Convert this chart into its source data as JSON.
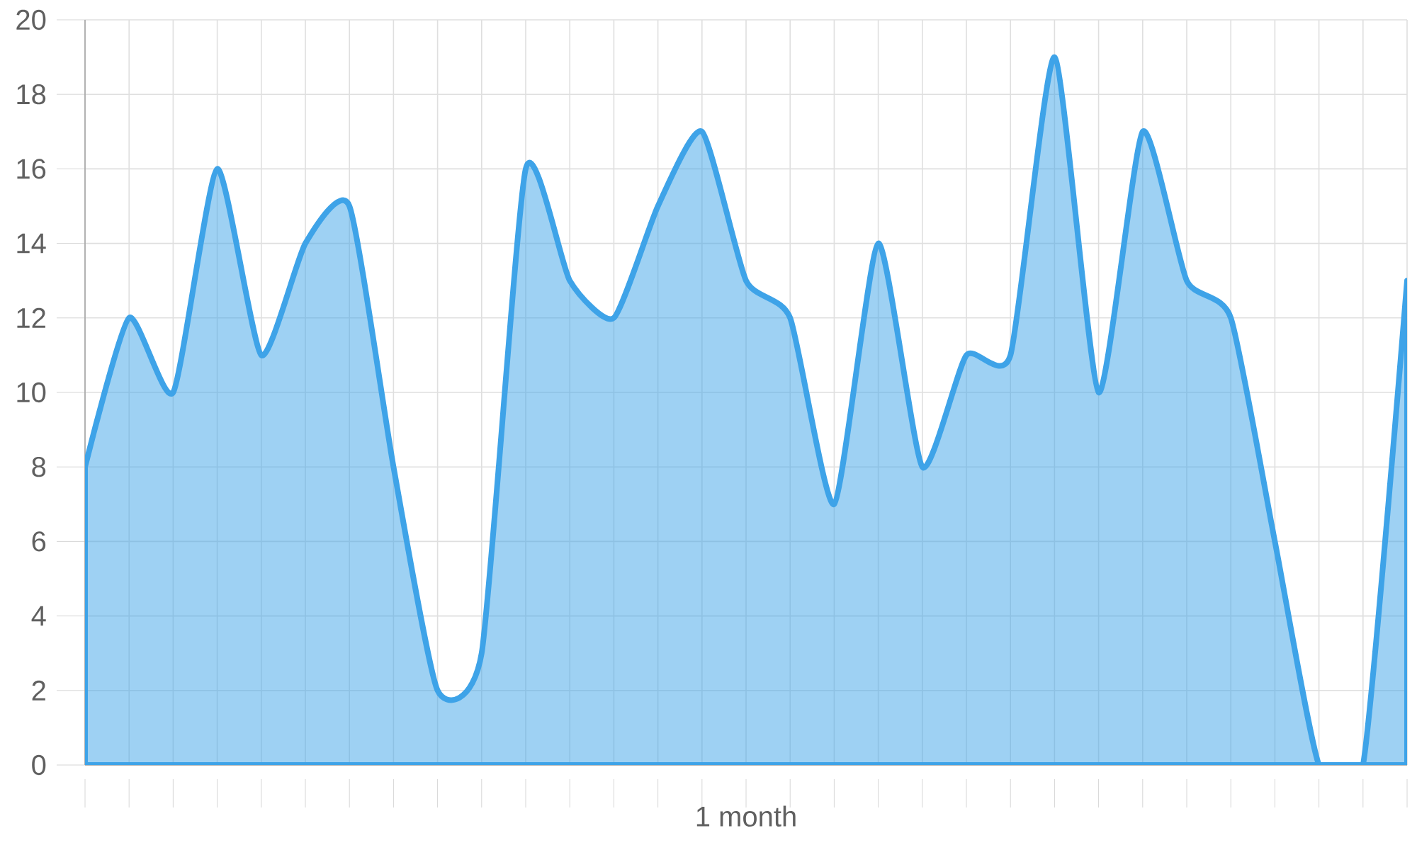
{
  "chart_data": {
    "type": "area",
    "xlabel": "1 month",
    "categories": [
      null,
      null,
      null,
      null,
      null,
      null,
      null,
      null,
      null,
      null,
      null,
      null,
      null,
      null,
      null,
      null,
      null,
      null,
      null,
      null,
      null,
      null,
      null,
      null,
      null,
      null,
      null,
      null,
      null,
      null,
      null
    ],
    "values": [
      8,
      12,
      10,
      16,
      11,
      14,
      15,
      8,
      2,
      3,
      16,
      13,
      12,
      15,
      17,
      13,
      12,
      7,
      14,
      8,
      11,
      11,
      19,
      10,
      17,
      13,
      12,
      6,
      0,
      0,
      13
    ],
    "color": "#3ea3e8",
    "ylim": [
      0,
      20
    ],
    "yticks": [
      0,
      2,
      4,
      6,
      8,
      10,
      12,
      14,
      16,
      18,
      20
    ],
    "grid": true,
    "marker": "none",
    "line_style": "solid"
  }
}
